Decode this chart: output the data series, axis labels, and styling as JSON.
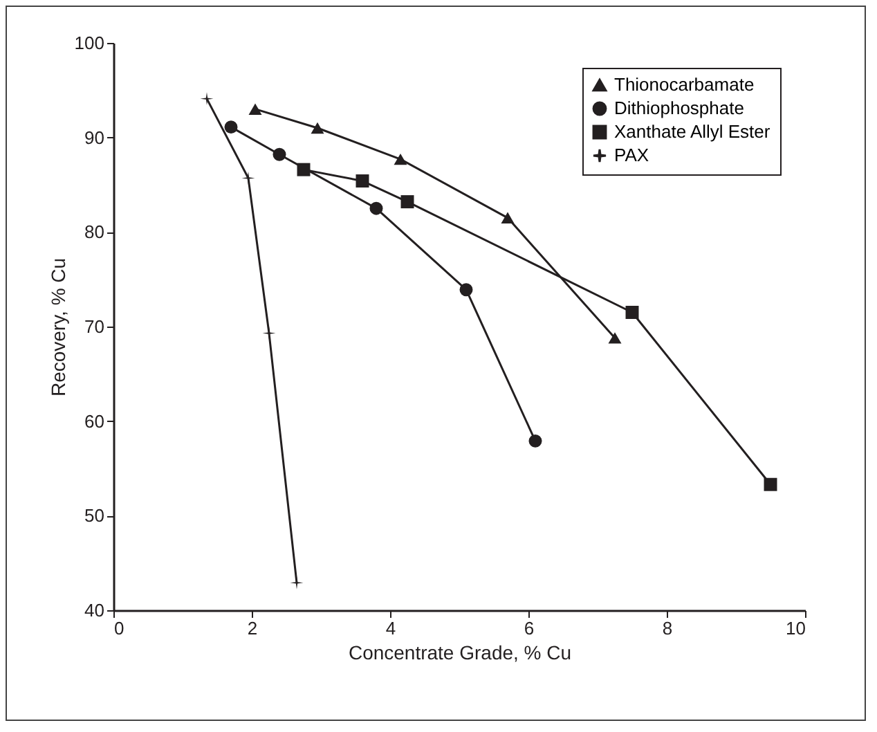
{
  "chart_data": {
    "type": "line",
    "xlabel": "Concentrate Grade, % Cu",
    "ylabel": "Recovery, % Cu",
    "xlim": [
      0,
      10
    ],
    "xticks": [
      0,
      2,
      4,
      6,
      8,
      10
    ],
    "ylim": [
      40,
      100
    ],
    "yticks": [
      40,
      50,
      60,
      70,
      80,
      90,
      100
    ],
    "grid": false,
    "legend": "top right",
    "line_style": "solid",
    "series": [
      {
        "name": "Thionocarbamate",
        "color": "#231f20",
        "marker": "triangle",
        "x": [
          2.05,
          2.95,
          4.15,
          5.7,
          7.25
        ],
        "values": [
          93,
          91,
          87.7,
          81.5,
          68.8
        ]
      },
      {
        "name": "Dithiophosphate",
        "color": "#231f20",
        "marker": "circle",
        "x": [
          1.7,
          2.4,
          3.8,
          5.1,
          6.1
        ],
        "values": [
          91.1,
          88.2,
          82.5,
          73.9,
          57.9
        ]
      },
      {
        "name": "Xanthate Allyl Ester",
        "color": "#231f20",
        "marker": "square",
        "x": [
          2.75,
          3.6,
          4.25,
          7.5,
          9.5
        ],
        "values": [
          86.6,
          85.4,
          83.2,
          71.5,
          53.3
        ]
      },
      {
        "name": "PAX",
        "color": "#231f20",
        "marker": "cross",
        "x": [
          1.35,
          1.95,
          2.25,
          2.65
        ],
        "values": [
          94.1,
          85.7,
          69.3,
          42.9
        ]
      }
    ]
  }
}
